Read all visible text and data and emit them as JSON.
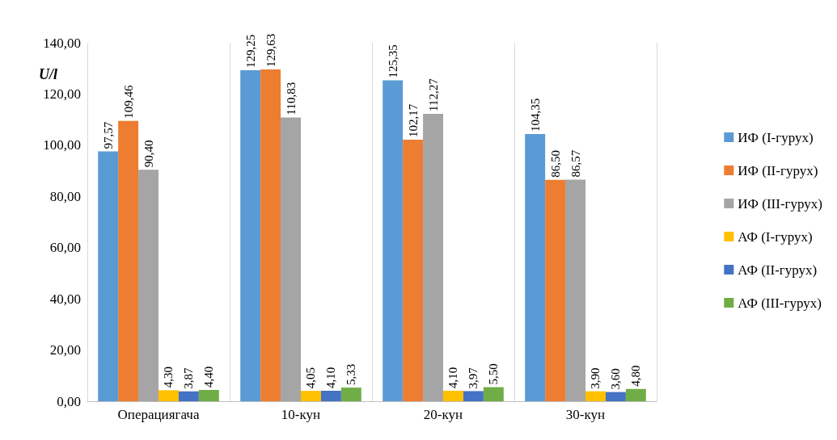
{
  "chart_data": {
    "type": "bar",
    "ylabel": "U/l",
    "categories": [
      "Операциягача",
      "10-кун",
      "20-кун",
      "30-кун"
    ],
    "series": [
      {
        "name": "ИФ (I-гурух)",
        "color": "#5b9bd5",
        "values": [
          97.57,
          129.25,
          125.35,
          104.35
        ],
        "value_labels": [
          "97,57",
          "129,25",
          "125,35",
          "104,35"
        ]
      },
      {
        "name": "ИФ (II-гурух)",
        "color": "#ed7d31",
        "values": [
          109.46,
          129.63,
          102.17,
          86.5
        ],
        "value_labels": [
          "109,46",
          "129,63",
          "102,17",
          "86,50"
        ]
      },
      {
        "name": "ИФ (III-гурух)",
        "color": "#a5a5a5",
        "values": [
          90.4,
          110.83,
          112.27,
          86.57
        ],
        "value_labels": [
          "90,40",
          "110,83",
          "112,27",
          "86,57"
        ]
      },
      {
        "name": "АФ (I-гурух)",
        "color": "#ffc000",
        "values": [
          4.3,
          4.05,
          4.1,
          3.9
        ],
        "value_labels": [
          "4,30",
          "4,05",
          "4,10",
          "3,90"
        ]
      },
      {
        "name": "АФ (II-гурух)",
        "color": "#4472c4",
        "values": [
          3.87,
          4.1,
          3.97,
          3.6
        ],
        "value_labels": [
          "3,87",
          "4,10",
          "3,97",
          "3,60"
        ]
      },
      {
        "name": "АФ (III-гурух)",
        "color": "#70ad47",
        "values": [
          4.4,
          5.33,
          5.5,
          4.8
        ],
        "value_labels": [
          "4,40",
          "5,33",
          "5,50",
          "4,80"
        ]
      }
    ],
    "ylim": [
      0,
      140
    ],
    "yticks": [
      {
        "value": 0,
        "label": "0,00"
      },
      {
        "value": 20,
        "label": "20,00"
      },
      {
        "value": 40,
        "label": "40,00"
      },
      {
        "value": 60,
        "label": "60,00"
      },
      {
        "value": 80,
        "label": "80,00"
      },
      {
        "value": 100,
        "label": "100,00"
      },
      {
        "value": 120,
        "label": "120,00"
      },
      {
        "value": 140,
        "label": "140,00"
      }
    ],
    "grid": "x",
    "legend": "right"
  }
}
